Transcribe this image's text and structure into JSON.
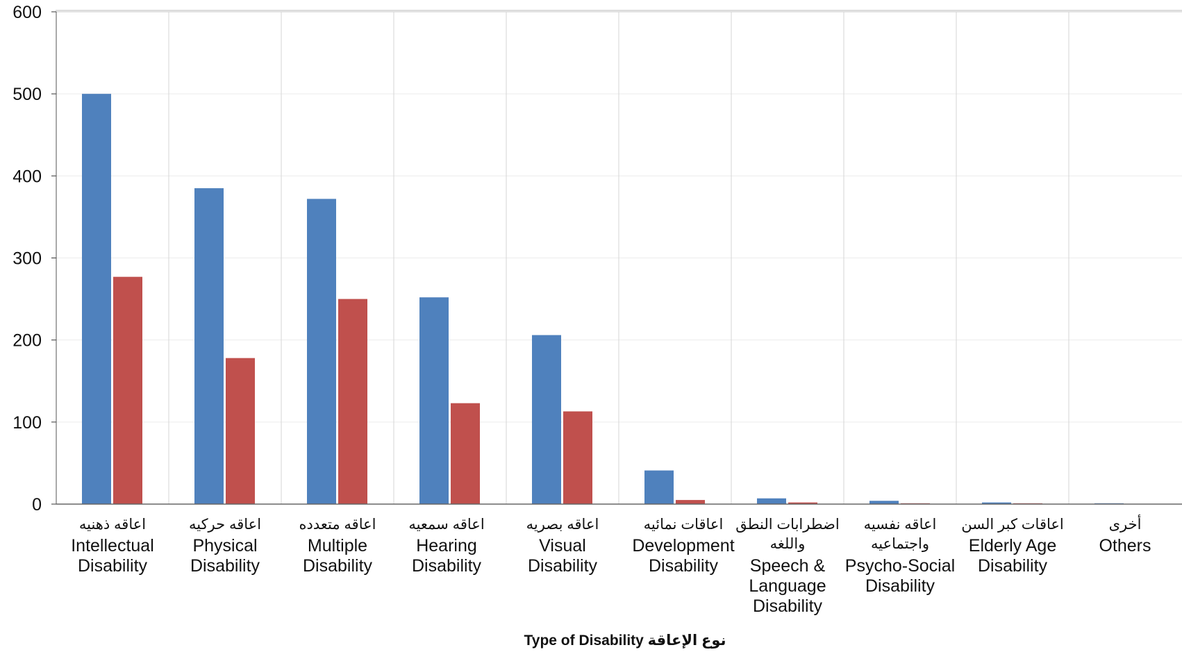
{
  "chart_data": {
    "type": "bar",
    "title": "",
    "xlabel": "Type of Disability نوع الإعاقة",
    "ylabel": "",
    "ylim": [
      0,
      600
    ],
    "yticks": [
      0,
      100,
      200,
      300,
      400,
      500,
      600
    ],
    "grid": true,
    "legend": "none",
    "categories": [
      {
        "ar": "اعاقه ذهنيه",
        "en": [
          "Intellectual",
          "Disability"
        ]
      },
      {
        "ar": "اعاقه حركيه",
        "en": [
          "Physical",
          "Disability"
        ]
      },
      {
        "ar": "اعاقه متعدده",
        "en": [
          "Multiple",
          "Disability"
        ]
      },
      {
        "ar": "اعاقه سمعيه",
        "en": [
          "Hearing",
          "Disability"
        ]
      },
      {
        "ar": "اعاقه بصريه",
        "en": [
          "Visual",
          "Disability"
        ]
      },
      {
        "ar": "اعاقات نمائيه",
        "en": [
          "Development",
          "Disability"
        ]
      },
      {
        "ar": "اضطرابات النطق واللغه",
        "en": [
          "Speech &",
          "Language",
          "Disability"
        ]
      },
      {
        "ar": "اعاقه نفسيه واجتماعيه",
        "en": [
          "Psycho-Social",
          "Disability"
        ]
      },
      {
        "ar": "اعاقات كبر السن",
        "en": [
          "Elderly Age",
          "Disability"
        ]
      },
      {
        "ar": "أخرى",
        "en": [
          "Others"
        ]
      }
    ],
    "series": [
      {
        "color": "#4f81bd",
        "values": [
          500,
          385,
          372,
          252,
          206,
          41,
          7,
          4,
          2,
          1
        ]
      },
      {
        "color": "#c0504d",
        "values": [
          277,
          178,
          250,
          123,
          113,
          5,
          2,
          1,
          1,
          0
        ]
      }
    ]
  }
}
